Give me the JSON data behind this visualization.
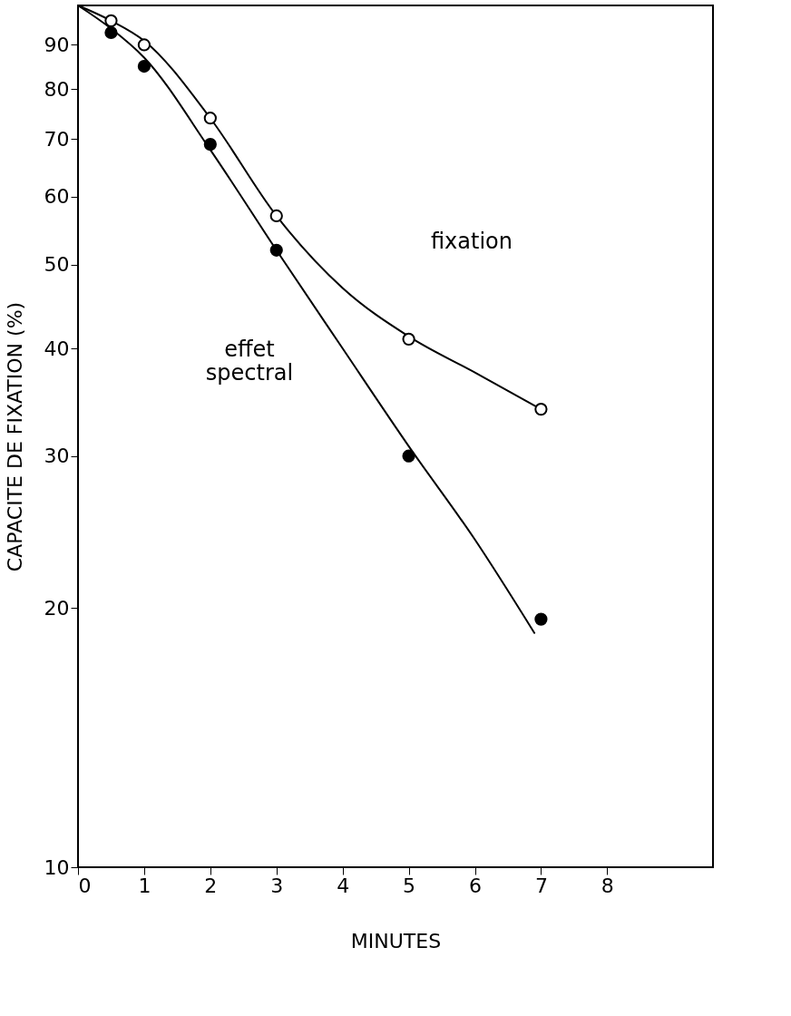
{
  "chart_data": {
    "type": "scatter",
    "xlabel": "MINUTES",
    "ylabel": "CAPACITE DE FIXATION (%)",
    "log": "y",
    "xlim": [
      0,
      9.6
    ],
    "ylim": [
      10,
      100
    ],
    "xticks": [
      0,
      1,
      2,
      3,
      4,
      5,
      6,
      7,
      8
    ],
    "yticks": [
      10,
      20,
      30,
      40,
      50,
      60,
      70,
      80,
      90
    ],
    "grid": false,
    "marker": "circle",
    "series": [
      {
        "type": "line",
        "marker": "none",
        "color": "#000000",
        "x": [
          0,
          0.5,
          1,
          2,
          3,
          4,
          5,
          6,
          7
        ],
        "values": [
          100,
          96,
          91,
          74,
          57,
          47,
          41.3,
          37.5,
          34
        ]
      },
      {
        "type": "line",
        "marker": "none",
        "color": "#000000",
        "x": [
          0,
          0.5,
          1,
          2,
          3,
          4,
          5,
          6,
          6.9
        ],
        "values": [
          100,
          94,
          87,
          68,
          52,
          40,
          30.8,
          24,
          18.7
        ]
      },
      {
        "color": "#ffffff",
        "x": [
          0.5,
          1,
          2,
          3,
          5,
          7
        ],
        "values": [
          96,
          90,
          74,
          57,
          41,
          34
        ]
      },
      {
        "color": "#000000",
        "x": [
          0.5,
          1,
          2,
          3,
          5,
          7
        ],
        "values": [
          93,
          85,
          69,
          52,
          30,
          19.4
        ]
      }
    ],
    "annotations": [
      "fixation",
      "effet\nspectral"
    ]
  }
}
